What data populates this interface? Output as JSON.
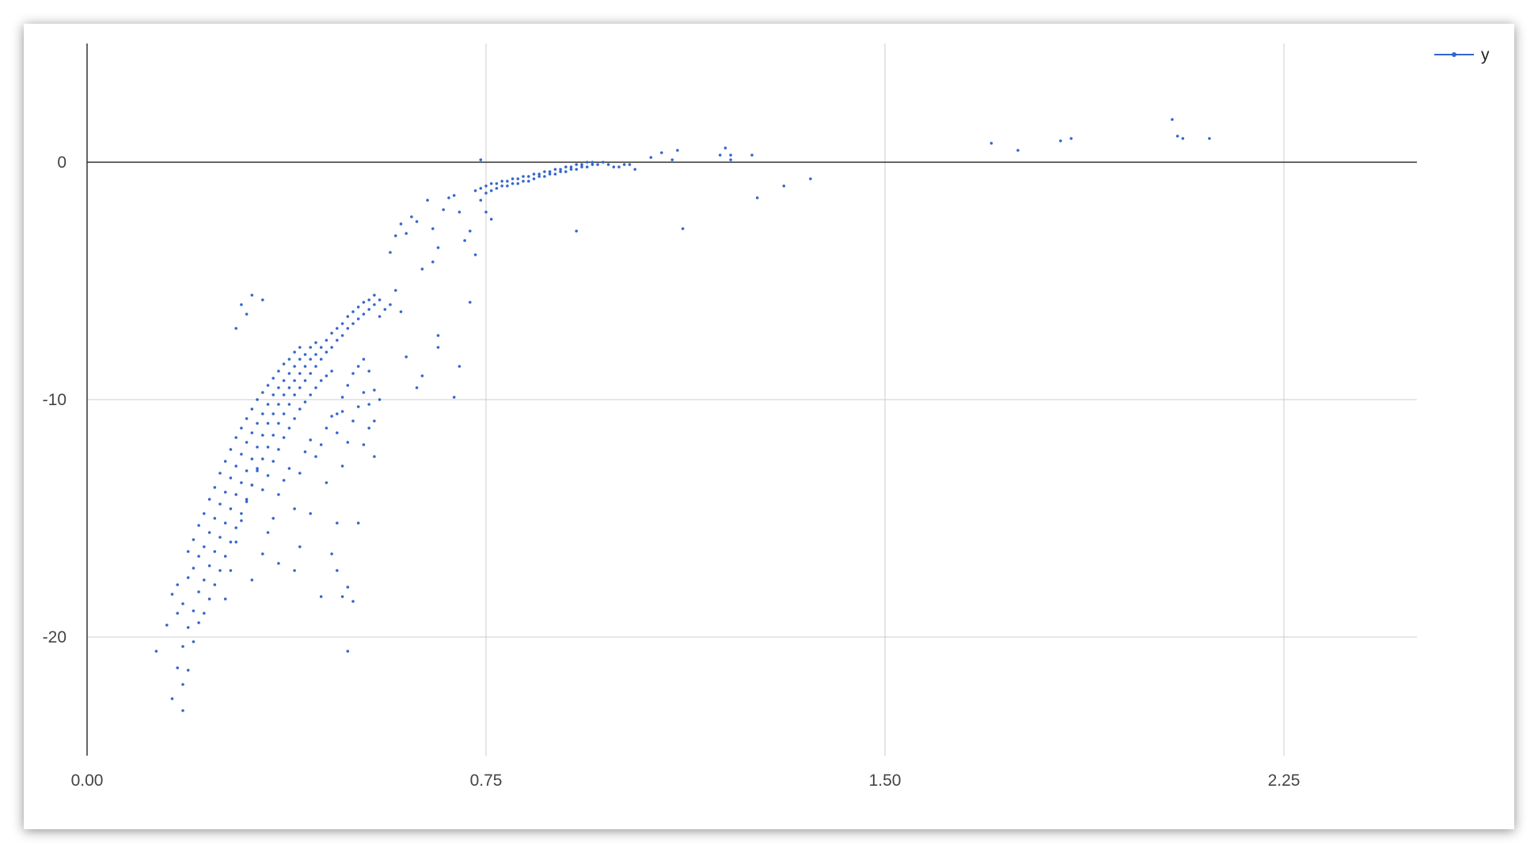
{
  "chart_data": {
    "type": "scatter",
    "title": "",
    "xlabel": "",
    "ylabel": "",
    "xlim": [
      0,
      2.5
    ],
    "ylim": [
      -25,
      5
    ],
    "x_ticks": [
      0.0,
      0.75,
      1.5,
      2.25
    ],
    "x_tick_labels": [
      "0.00",
      "0.75",
      "1.50",
      "2.25"
    ],
    "y_ticks": [
      0,
      -10,
      -20
    ],
    "y_tick_labels": [
      "0",
      "-10",
      "-20"
    ],
    "grid": true,
    "legend_position": "top-right",
    "series": [
      {
        "name": "y",
        "color": "#3366cc",
        "points": [
          [
            0.13,
            -20.6
          ],
          [
            0.15,
            -19.5
          ],
          [
            0.16,
            -18.2
          ],
          [
            0.16,
            -22.6
          ],
          [
            0.17,
            -21.3
          ],
          [
            0.17,
            -19.0
          ],
          [
            0.17,
            -17.8
          ],
          [
            0.18,
            -23.1
          ],
          [
            0.18,
            -22.0
          ],
          [
            0.18,
            -20.4
          ],
          [
            0.18,
            -18.6
          ],
          [
            0.19,
            -21.4
          ],
          [
            0.19,
            -19.6
          ],
          [
            0.19,
            -17.5
          ],
          [
            0.19,
            -16.4
          ],
          [
            0.2,
            -20.2
          ],
          [
            0.2,
            -18.9
          ],
          [
            0.2,
            -17.1
          ],
          [
            0.2,
            -15.9
          ],
          [
            0.21,
            -19.4
          ],
          [
            0.21,
            -18.1
          ],
          [
            0.21,
            -16.6
          ],
          [
            0.21,
            -15.3
          ],
          [
            0.22,
            -19.0
          ],
          [
            0.22,
            -17.6
          ],
          [
            0.22,
            -16.2
          ],
          [
            0.22,
            -14.8
          ],
          [
            0.23,
            -18.4
          ],
          [
            0.23,
            -17.0
          ],
          [
            0.23,
            -15.6
          ],
          [
            0.23,
            -14.2
          ],
          [
            0.24,
            -17.8
          ],
          [
            0.24,
            -16.4
          ],
          [
            0.24,
            -15.0
          ],
          [
            0.24,
            -13.7
          ],
          [
            0.25,
            -17.2
          ],
          [
            0.25,
            -15.8
          ],
          [
            0.25,
            -14.4
          ],
          [
            0.25,
            -13.1
          ],
          [
            0.26,
            -16.6
          ],
          [
            0.26,
            -15.2
          ],
          [
            0.26,
            -13.9
          ],
          [
            0.26,
            -12.6
          ],
          [
            0.27,
            -16.0
          ],
          [
            0.27,
            -14.6
          ],
          [
            0.27,
            -13.3
          ],
          [
            0.27,
            -12.1
          ],
          [
            0.28,
            -15.4
          ],
          [
            0.28,
            -14.0
          ],
          [
            0.28,
            -12.8
          ],
          [
            0.28,
            -11.6
          ],
          [
            0.29,
            -14.8
          ],
          [
            0.29,
            -13.5
          ],
          [
            0.29,
            -12.3
          ],
          [
            0.29,
            -11.2
          ],
          [
            0.3,
            -14.2
          ],
          [
            0.3,
            -13.0
          ],
          [
            0.3,
            -11.8
          ],
          [
            0.3,
            -10.8
          ],
          [
            0.31,
            -13.6
          ],
          [
            0.31,
            -12.5
          ],
          [
            0.31,
            -11.4
          ],
          [
            0.31,
            -10.4
          ],
          [
            0.32,
            -13.0
          ],
          [
            0.32,
            -12.0
          ],
          [
            0.32,
            -11.0
          ],
          [
            0.32,
            -10.0
          ],
          [
            0.33,
            -12.5
          ],
          [
            0.33,
            -11.5
          ],
          [
            0.33,
            -10.6
          ],
          [
            0.33,
            -9.7
          ],
          [
            0.34,
            -12.0
          ],
          [
            0.34,
            -11.0
          ],
          [
            0.34,
            -10.2
          ],
          [
            0.34,
            -9.4
          ],
          [
            0.35,
            -11.5
          ],
          [
            0.35,
            -10.6
          ],
          [
            0.35,
            -9.8
          ],
          [
            0.35,
            -9.1
          ],
          [
            0.36,
            -11.0
          ],
          [
            0.36,
            -10.2
          ],
          [
            0.36,
            -9.5
          ],
          [
            0.36,
            -8.8
          ],
          [
            0.37,
            -10.6
          ],
          [
            0.37,
            -9.8
          ],
          [
            0.37,
            -9.2
          ],
          [
            0.37,
            -8.5
          ],
          [
            0.38,
            -10.2
          ],
          [
            0.38,
            -9.5
          ],
          [
            0.38,
            -8.9
          ],
          [
            0.38,
            -8.3
          ],
          [
            0.39,
            -9.8
          ],
          [
            0.39,
            -9.2
          ],
          [
            0.39,
            -8.6
          ],
          [
            0.39,
            -8.0
          ],
          [
            0.4,
            -9.5
          ],
          [
            0.4,
            -8.9
          ],
          [
            0.4,
            -8.3
          ],
          [
            0.4,
            -7.8
          ],
          [
            0.41,
            -9.2
          ],
          [
            0.41,
            -8.6
          ],
          [
            0.41,
            -8.1
          ],
          [
            0.42,
            -8.9
          ],
          [
            0.42,
            -8.3
          ],
          [
            0.42,
            -7.8
          ],
          [
            0.43,
            -8.6
          ],
          [
            0.43,
            -8.1
          ],
          [
            0.43,
            -7.6
          ],
          [
            0.44,
            -8.3
          ],
          [
            0.44,
            -7.8
          ],
          [
            0.45,
            -8.0
          ],
          [
            0.45,
            -7.5
          ],
          [
            0.46,
            -7.8
          ],
          [
            0.46,
            -7.2
          ],
          [
            0.47,
            -7.5
          ],
          [
            0.47,
            -7.0
          ],
          [
            0.48,
            -7.3
          ],
          [
            0.48,
            -6.8
          ],
          [
            0.49,
            -7.0
          ],
          [
            0.49,
            -6.5
          ],
          [
            0.5,
            -6.8
          ],
          [
            0.5,
            -6.3
          ],
          [
            0.51,
            -6.6
          ],
          [
            0.51,
            -6.1
          ],
          [
            0.52,
            -6.4
          ],
          [
            0.52,
            -5.9
          ],
          [
            0.53,
            -6.2
          ],
          [
            0.53,
            -5.8
          ],
          [
            0.54,
            -6.0
          ],
          [
            0.54,
            -5.6
          ],
          [
            0.55,
            -6.5
          ],
          [
            0.55,
            -5.8
          ],
          [
            0.56,
            -6.2
          ],
          [
            0.57,
            -6.0
          ],
          [
            0.58,
            -5.4
          ],
          [
            0.59,
            -6.3
          ],
          [
            0.26,
            -18.4
          ],
          [
            0.27,
            -17.2
          ],
          [
            0.28,
            -16.0
          ],
          [
            0.29,
            -15.1
          ],
          [
            0.3,
            -14.3
          ],
          [
            0.31,
            -13.6
          ],
          [
            0.32,
            -12.9
          ],
          [
            0.33,
            -13.8
          ],
          [
            0.34,
            -13.2
          ],
          [
            0.35,
            -12.6
          ],
          [
            0.36,
            -12.1
          ],
          [
            0.37,
            -11.6
          ],
          [
            0.38,
            -11.2
          ],
          [
            0.39,
            -10.8
          ],
          [
            0.4,
            -10.4
          ],
          [
            0.41,
            -10.1
          ],
          [
            0.42,
            -9.8
          ],
          [
            0.43,
            -9.5
          ],
          [
            0.44,
            -9.2
          ],
          [
            0.45,
            -9.0
          ],
          [
            0.46,
            -8.8
          ],
          [
            0.47,
            -10.6
          ],
          [
            0.48,
            -9.9
          ],
          [
            0.49,
            -9.4
          ],
          [
            0.5,
            -8.9
          ],
          [
            0.51,
            -8.6
          ],
          [
            0.52,
            -8.3
          ],
          [
            0.53,
            -8.8
          ],
          [
            0.54,
            -9.6
          ],
          [
            0.35,
            -15.0
          ],
          [
            0.36,
            -14.0
          ],
          [
            0.37,
            -13.4
          ],
          [
            0.38,
            -12.9
          ],
          [
            0.39,
            -14.6
          ],
          [
            0.4,
            -13.1
          ],
          [
            0.41,
            -12.2
          ],
          [
            0.42,
            -11.7
          ],
          [
            0.43,
            -12.4
          ],
          [
            0.44,
            -11.9
          ],
          [
            0.45,
            -11.2
          ],
          [
            0.46,
            -10.7
          ],
          [
            0.47,
            -11.4
          ],
          [
            0.48,
            -10.5
          ],
          [
            0.49,
            -11.8
          ],
          [
            0.5,
            -10.9
          ],
          [
            0.51,
            -10.3
          ],
          [
            0.52,
            -9.7
          ],
          [
            0.53,
            -10.2
          ],
          [
            0.54,
            -10.9
          ],
          [
            0.55,
            -10.0
          ],
          [
            0.31,
            -17.6
          ],
          [
            0.33,
            -16.5
          ],
          [
            0.34,
            -15.6
          ],
          [
            0.36,
            -16.9
          ],
          [
            0.29,
            -6.0
          ],
          [
            0.3,
            -6.4
          ],
          [
            0.31,
            -5.6
          ],
          [
            0.28,
            -7.0
          ],
          [
            0.33,
            -5.8
          ],
          [
            0.46,
            -16.5
          ],
          [
            0.47,
            -17.2
          ],
          [
            0.48,
            -18.3
          ],
          [
            0.49,
            -17.9
          ],
          [
            0.5,
            -18.5
          ],
          [
            0.51,
            -15.2
          ],
          [
            0.48,
            -12.8
          ],
          [
            0.47,
            -15.2
          ],
          [
            0.49,
            -20.6
          ],
          [
            0.45,
            -13.5
          ],
          [
            0.44,
            -18.3
          ],
          [
            0.42,
            -14.8
          ],
          [
            0.4,
            -16.2
          ],
          [
            0.39,
            -17.2
          ],
          [
            0.53,
            -11.2
          ],
          [
            0.52,
            -11.9
          ],
          [
            0.54,
            -12.4
          ],
          [
            0.57,
            -3.8
          ],
          [
            0.58,
            -3.1
          ],
          [
            0.59,
            -2.6
          ],
          [
            0.6,
            -3.0
          ],
          [
            0.61,
            -2.3
          ],
          [
            0.62,
            -2.5
          ],
          [
            0.63,
            -4.5
          ],
          [
            0.64,
            -1.6
          ],
          [
            0.65,
            -2.8
          ],
          [
            0.66,
            -3.6
          ],
          [
            0.67,
            -2.0
          ],
          [
            0.68,
            -1.5
          ],
          [
            0.69,
            -1.4
          ],
          [
            0.7,
            -2.1
          ],
          [
            0.71,
            -3.3
          ],
          [
            0.72,
            -2.9
          ],
          [
            0.65,
            -4.2
          ],
          [
            0.66,
            -7.8
          ],
          [
            0.66,
            -7.3
          ],
          [
            0.69,
            -9.9
          ],
          [
            0.7,
            -8.6
          ],
          [
            0.72,
            -5.9
          ],
          [
            0.63,
            -9.0
          ],
          [
            0.62,
            -9.5
          ],
          [
            0.6,
            -8.2
          ],
          [
            0.73,
            -3.9
          ],
          [
            0.73,
            -1.2
          ],
          [
            0.74,
            -1.1
          ],
          [
            0.74,
            -1.6
          ],
          [
            0.74,
            0.1
          ],
          [
            0.75,
            -1.0
          ],
          [
            0.75,
            -1.3
          ],
          [
            0.75,
            -2.1
          ],
          [
            0.76,
            -0.9
          ],
          [
            0.76,
            -1.2
          ],
          [
            0.77,
            -0.9
          ],
          [
            0.77,
            -1.1
          ],
          [
            0.78,
            -0.8
          ],
          [
            0.78,
            -1.0
          ],
          [
            0.79,
            -0.8
          ],
          [
            0.79,
            -1.0
          ],
          [
            0.8,
            -0.7
          ],
          [
            0.8,
            -0.9
          ],
          [
            0.81,
            -0.7
          ],
          [
            0.81,
            -0.9
          ],
          [
            0.82,
            -0.6
          ],
          [
            0.82,
            -0.8
          ],
          [
            0.83,
            -0.6
          ],
          [
            0.83,
            -0.8
          ],
          [
            0.84,
            -0.5
          ],
          [
            0.84,
            -0.7
          ],
          [
            0.85,
            -0.5
          ],
          [
            0.85,
            -0.6
          ],
          [
            0.86,
            -0.4
          ],
          [
            0.86,
            -0.6
          ],
          [
            0.87,
            -0.4
          ],
          [
            0.87,
            -0.5
          ],
          [
            0.88,
            -0.3
          ],
          [
            0.88,
            -0.5
          ],
          [
            0.89,
            -0.3
          ],
          [
            0.89,
            -0.4
          ],
          [
            0.9,
            -0.2
          ],
          [
            0.9,
            -0.4
          ],
          [
            0.91,
            -0.2
          ],
          [
            0.91,
            -0.3
          ],
          [
            0.92,
            -0.1
          ],
          [
            0.92,
            -0.3
          ],
          [
            0.93,
            -0.1
          ],
          [
            0.93,
            -0.2
          ],
          [
            0.94,
            0.0
          ],
          [
            0.94,
            -0.2
          ],
          [
            0.95,
            0.0
          ],
          [
            0.95,
            -0.1
          ],
          [
            0.96,
            -0.1
          ],
          [
            0.97,
            0.0
          ],
          [
            0.98,
            -0.1
          ],
          [
            0.99,
            -0.2
          ],
          [
            1.0,
            -0.2
          ],
          [
            1.01,
            -0.1
          ],
          [
            1.02,
            -0.1
          ],
          [
            1.03,
            -0.3
          ],
          [
            1.06,
            0.2
          ],
          [
            1.08,
            0.4
          ],
          [
            0.92,
            -2.9
          ],
          [
            0.76,
            -2.4
          ],
          [
            1.1,
            0.1
          ],
          [
            1.11,
            0.5
          ],
          [
            1.12,
            -2.8
          ],
          [
            1.19,
            0.3
          ],
          [
            1.2,
            0.6
          ],
          [
            1.21,
            0.3
          ],
          [
            1.21,
            0.1
          ],
          [
            1.25,
            0.3
          ],
          [
            1.26,
            -1.5
          ],
          [
            1.31,
            -1.0
          ],
          [
            1.36,
            -0.7
          ],
          [
            1.7,
            0.8
          ],
          [
            1.75,
            0.5
          ],
          [
            1.83,
            0.9
          ],
          [
            1.85,
            1.0
          ],
          [
            2.04,
            1.8
          ],
          [
            2.05,
            1.1
          ],
          [
            2.06,
            1.0
          ],
          [
            2.11,
            1.0
          ]
        ]
      }
    ]
  }
}
